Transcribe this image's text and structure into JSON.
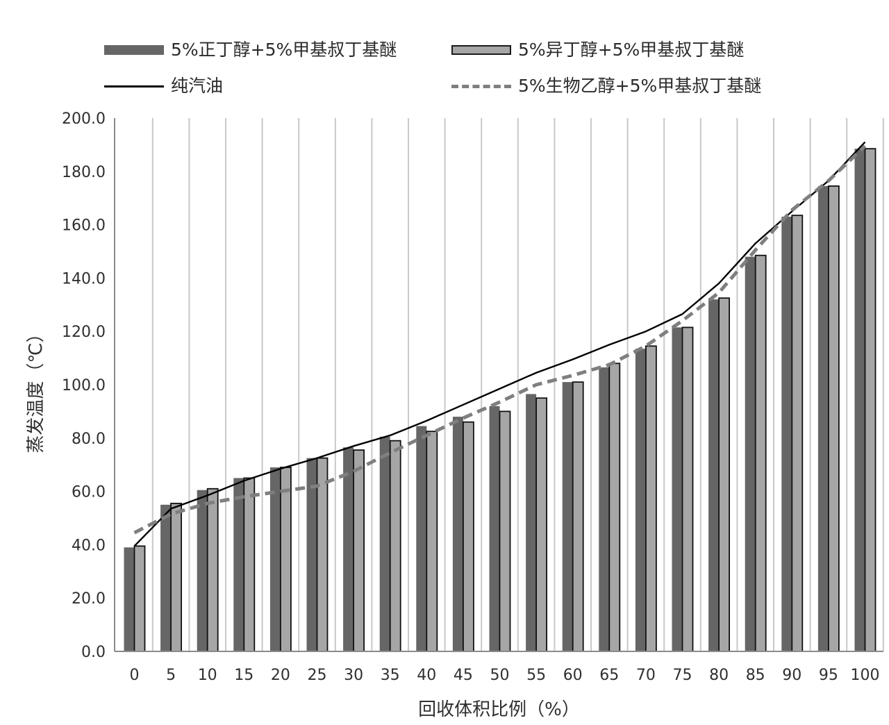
{
  "chart_data": {
    "type": "bar",
    "categories": [
      "0",
      "5",
      "10",
      "15",
      "20",
      "25",
      "30",
      "35",
      "40",
      "45",
      "50",
      "55",
      "60",
      "65",
      "70",
      "75",
      "80",
      "85",
      "90",
      "95",
      "100"
    ],
    "series": [
      {
        "name": "5%正丁醇+5%甲基叔丁基醚",
        "kind": "bar",
        "color": "#666666",
        "values": [
          39.0,
          55.0,
          60.5,
          65.0,
          69.0,
          72.5,
          76.5,
          80.5,
          84.5,
          88.0,
          92.0,
          96.5,
          101.0,
          106.5,
          113.5,
          121.5,
          132.0,
          148.0,
          163.0,
          174.5,
          188.5
        ]
      },
      {
        "name": "5%异丁醇+5%甲基叔丁基醚",
        "kind": "bar",
        "color": "#a6a6a6",
        "values": [
          39.5,
          55.5,
          61.0,
          65.0,
          69.0,
          72.5,
          75.5,
          79.0,
          82.5,
          86.0,
          90.0,
          95.0,
          101.0,
          108.0,
          114.5,
          121.5,
          132.5,
          148.5,
          163.5,
          174.5,
          188.5
        ]
      },
      {
        "name": "纯汽油",
        "kind": "line",
        "color": "#000000",
        "dash": "solid",
        "values": [
          39.5,
          53.5,
          58.5,
          64.0,
          68.5,
          72.5,
          77.0,
          81.0,
          86.5,
          92.5,
          98.5,
          104.5,
          109.5,
          115.0,
          120.0,
          126.5,
          138.0,
          153.0,
          165.0,
          176.5,
          191.0
        ]
      },
      {
        "name": "5%生物乙醇+5%甲基叔丁基醚",
        "kind": "line",
        "color": "#7f7f7f",
        "dash": "dashed",
        "values": [
          44.5,
          51.5,
          55.5,
          58.0,
          60.0,
          62.0,
          67.5,
          74.5,
          81.0,
          87.5,
          93.5,
          100.0,
          103.5,
          107.5,
          114.5,
          124.0,
          134.5,
          150.5,
          165.5,
          176.5,
          189.5
        ]
      }
    ],
    "ylim": [
      0,
      200
    ],
    "yticks": [
      "0.0",
      "20.0",
      "40.0",
      "60.0",
      "80.0",
      "100.0",
      "120.0",
      "140.0",
      "160.0",
      "180.0",
      "200.0"
    ],
    "xlabel": "回收体积比例（%）",
    "ylabel": "蒸发温度（℃）",
    "grid": "vertical",
    "legend_position": "top"
  }
}
